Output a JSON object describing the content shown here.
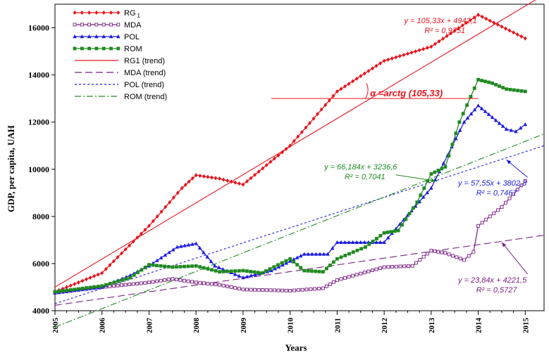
{
  "chart_data": {
    "type": "line",
    "title": "",
    "xlabel": "Years",
    "ylabel": "GDP, per capita, UAH",
    "xlim": [
      2005,
      2015.4
    ],
    "ylim": [
      4000,
      17000
    ],
    "x_ticks": [
      2005,
      2006,
      2007,
      2008,
      2009,
      2010,
      2011,
      2012,
      2013,
      2014,
      2015
    ],
    "x_tick_labels": [
      "2005",
      "2006",
      "2007",
      "2008",
      "2009",
      "2010",
      "2011",
      "2012",
      "2013",
      "2014",
      "2015"
    ],
    "y_ticks": [
      4000,
      6000,
      8000,
      10000,
      12000,
      14000,
      16000
    ],
    "y_tick_labels": [
      "4000",
      "6000",
      "8000",
      "10000",
      "12000",
      "14000",
      "16000"
    ],
    "grid": false,
    "legend_position": "top-left",
    "legend": [
      {
        "label": "RG",
        "sub": "1",
        "color": "#e8141c",
        "dash": "",
        "marker": "diamond"
      },
      {
        "label": "MDA",
        "color": "#7b1f86",
        "dash": "",
        "marker": "square-open"
      },
      {
        "label": "POL",
        "color": "#1c1ce0",
        "dash": "",
        "marker": "triangle"
      },
      {
        "label": "ROM",
        "color": "#1f8a1f",
        "dash": "",
        "marker": "square"
      },
      {
        "label": "RG1 (trend)",
        "color": "#e8141c",
        "dash": "",
        "marker": "none"
      },
      {
        "label": "MDA (trend)",
        "color": "#7b1f86",
        "dash": "10,5",
        "marker": "none"
      },
      {
        "label": "POL (trend)",
        "color": "#1c1ce0",
        "dash": "3,3",
        "marker": "none"
      },
      {
        "label": "ROM (trend)",
        "color": "#1f8a1f",
        "dash": "9,3,2,3",
        "marker": "none"
      }
    ],
    "series": [
      {
        "name": "RG1",
        "color": "#e8141c",
        "marker": "diamond",
        "points": [
          [
            2005,
            4800
          ],
          [
            2006,
            5600
          ],
          [
            2007,
            7600
          ],
          [
            2007.7,
            9200
          ],
          [
            2008,
            9750
          ],
          [
            2008.5,
            9600
          ],
          [
            2009,
            9350
          ],
          [
            2010,
            11000
          ],
          [
            2011,
            13300
          ],
          [
            2012,
            14600
          ],
          [
            2013,
            15200
          ],
          [
            2014,
            16550
          ],
          [
            2015,
            15550
          ]
        ]
      },
      {
        "name": "MDA",
        "color": "#7b1f86",
        "marker": "square-open",
        "points": [
          [
            2005,
            4800
          ],
          [
            2006,
            5000
          ],
          [
            2007,
            5200
          ],
          [
            2007.5,
            5350
          ],
          [
            2008,
            5200
          ],
          [
            2008.5,
            5100
          ],
          [
            2009,
            4900
          ],
          [
            2010,
            4850
          ],
          [
            2010.7,
            4950
          ],
          [
            2011,
            5300
          ],
          [
            2012,
            5850
          ],
          [
            2012.6,
            5900
          ],
          [
            2013,
            6550
          ],
          [
            2013.3,
            6450
          ],
          [
            2013.7,
            6150
          ],
          [
            2013.9,
            6500
          ],
          [
            2014,
            7600
          ],
          [
            2014.5,
            8400
          ],
          [
            2015,
            9500
          ]
        ]
      },
      {
        "name": "POL",
        "color": "#1c1ce0",
        "marker": "triangle",
        "points": [
          [
            2005,
            4750
          ],
          [
            2006,
            5000
          ],
          [
            2006.6,
            5500
          ],
          [
            2007,
            5900
          ],
          [
            2007.6,
            6700
          ],
          [
            2008,
            6850
          ],
          [
            2008.4,
            5900
          ],
          [
            2009,
            5400
          ],
          [
            2009.6,
            5700
          ],
          [
            2010,
            6100
          ],
          [
            2010.3,
            6400
          ],
          [
            2010.8,
            6400
          ],
          [
            2011,
            6900
          ],
          [
            2012,
            6900
          ],
          [
            2013,
            9200
          ],
          [
            2013.7,
            12000
          ],
          [
            2014,
            12700
          ],
          [
            2014.3,
            12200
          ],
          [
            2014.6,
            11700
          ],
          [
            2014.8,
            11600
          ],
          [
            2015,
            11900
          ]
        ]
      },
      {
        "name": "ROM",
        "color": "#1f8a1f",
        "marker": "square",
        "points": [
          [
            2005,
            4800
          ],
          [
            2006,
            5050
          ],
          [
            2006.6,
            5400
          ],
          [
            2007,
            5950
          ],
          [
            2007.5,
            5850
          ],
          [
            2008,
            5900
          ],
          [
            2008.5,
            5650
          ],
          [
            2009,
            5700
          ],
          [
            2009.4,
            5600
          ],
          [
            2010,
            6200
          ],
          [
            2010.3,
            5700
          ],
          [
            2010.7,
            5650
          ],
          [
            2011,
            6200
          ],
          [
            2011.6,
            6700
          ],
          [
            2012,
            7300
          ],
          [
            2012.3,
            7400
          ],
          [
            2012.7,
            8600
          ],
          [
            2013,
            9800
          ],
          [
            2013.3,
            10100
          ],
          [
            2013.6,
            12000
          ],
          [
            2014,
            13800
          ],
          [
            2014.3,
            13650
          ],
          [
            2014.6,
            13400
          ],
          [
            2015,
            13300
          ]
        ]
      }
    ],
    "trendlines": [
      {
        "name": "RG1 (trend)",
        "color": "#e8141c",
        "dash": "",
        "from": [
          2005,
          5000
        ],
        "to": [
          2015.4,
          17400
        ]
      },
      {
        "name": "MDA (trend)",
        "color": "#7b1f86",
        "dash": "10,5",
        "from": [
          2005,
          4230
        ],
        "to": [
          2015.4,
          7200
        ]
      },
      {
        "name": "POL (trend)",
        "color": "#1c1ce0",
        "dash": "3,3",
        "from": [
          2005,
          4300
        ],
        "to": [
          2015.4,
          11000
        ]
      },
      {
        "name": "ROM (trend)",
        "color": "#1f8a1f",
        "dash": "9,3,2,3",
        "from": [
          2005,
          3300
        ],
        "to": [
          2015.4,
          11500
        ]
      }
    ],
    "angle_line": {
      "color": "#e8141c",
      "from": [
        2009.6,
        13000
      ],
      "to": [
        2014,
        13000
      ],
      "label": "α =arctg (105,33)"
    },
    "equations": [
      {
        "color": "#e8141c",
        "line1": "y = 105,33x + 4942,1",
        "line2": "R² = 0,9751",
        "anchor": [
          2013.2,
          16200
        ]
      },
      {
        "color": "#1f8a1f",
        "line1": "y = 66,184x + 3236,6",
        "line2": "R² = 0,7041",
        "anchor": [
          2011.5,
          10000
        ],
        "arrow_to": [
          2013.1,
          9500
        ]
      },
      {
        "color": "#1c1ce0",
        "line1": "y = 57,55x + 3802,3",
        "line2": "R² = 0,7467",
        "anchor": [
          2014.3,
          9300
        ],
        "arrow_to": [
          2014.6,
          10400
        ]
      },
      {
        "color": "#7b1f86",
        "line1": "y = 23,84x + 4221,5",
        "line2": "R² = 0,5727",
        "anchor": [
          2014.3,
          5200
        ],
        "arrow_to": [
          2014.5,
          6900
        ]
      }
    ]
  }
}
